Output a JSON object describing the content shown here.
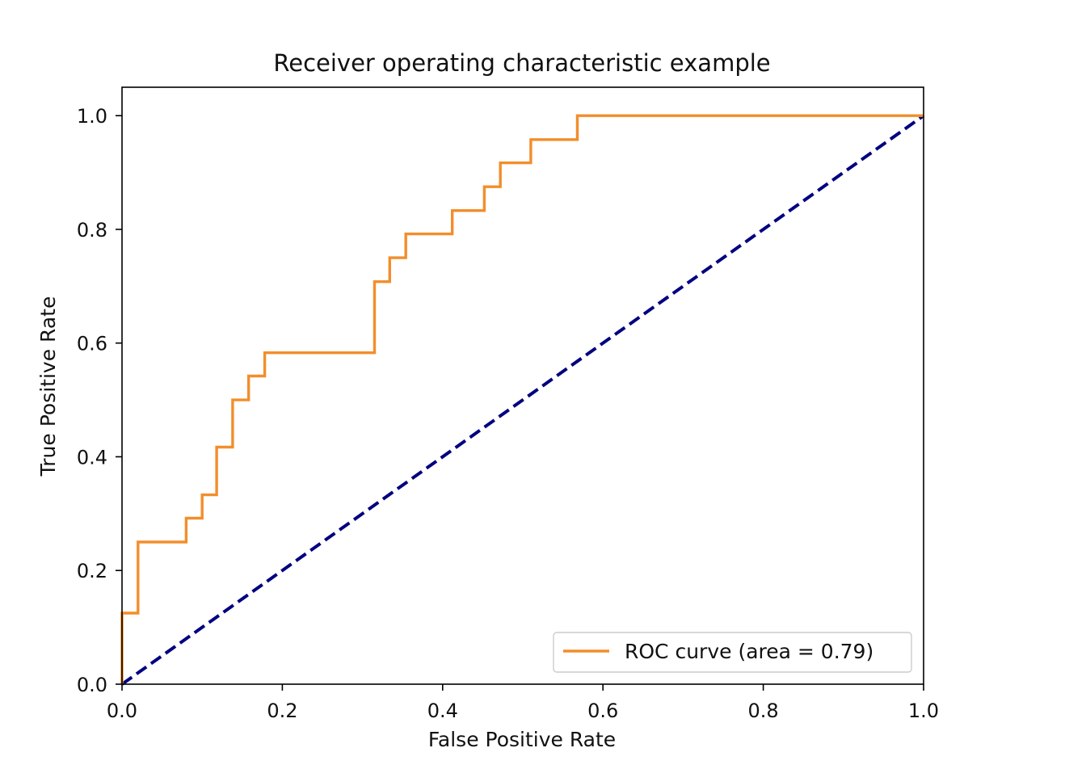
{
  "chart_data": {
    "type": "line",
    "title": "Receiver operating characteristic example",
    "xlabel": "False Positive Rate",
    "ylabel": "True Positive Rate",
    "xlim": [
      0.0,
      1.0
    ],
    "ylim": [
      0.0,
      1.05
    ],
    "xticks": [
      "0.0",
      "0.2",
      "0.4",
      "0.6",
      "0.8",
      "1.0"
    ],
    "yticks": [
      "0.0",
      "0.2",
      "0.4",
      "0.6",
      "0.8",
      "1.0"
    ],
    "grid": false,
    "legend_position": "lower-right",
    "series": [
      {
        "name": "ROC curve (area = 0.79)",
        "color": "#f28e2b",
        "style": "solid",
        "x": [
          0.0,
          0.0,
          0.02,
          0.02,
          0.08,
          0.08,
          0.1,
          0.1,
          0.118,
          0.118,
          0.138,
          0.138,
          0.158,
          0.158,
          0.178,
          0.178,
          0.315,
          0.315,
          0.334,
          0.334,
          0.354,
          0.354,
          0.412,
          0.412,
          0.452,
          0.452,
          0.472,
          0.472,
          0.51,
          0.51,
          0.568,
          0.568,
          1.0
        ],
        "y": [
          0.0,
          0.125,
          0.125,
          0.25,
          0.25,
          0.292,
          0.292,
          0.333,
          0.333,
          0.417,
          0.417,
          0.5,
          0.5,
          0.542,
          0.542,
          0.583,
          0.583,
          0.708,
          0.708,
          0.75,
          0.75,
          0.792,
          0.792,
          0.833,
          0.833,
          0.875,
          0.875,
          0.917,
          0.917,
          0.958,
          0.958,
          1.0,
          1.0
        ]
      },
      {
        "name": "",
        "color": "#000080",
        "style": "dashed",
        "x": [
          0.0,
          1.0
        ],
        "y": [
          0.0,
          1.0
        ]
      }
    ]
  }
}
